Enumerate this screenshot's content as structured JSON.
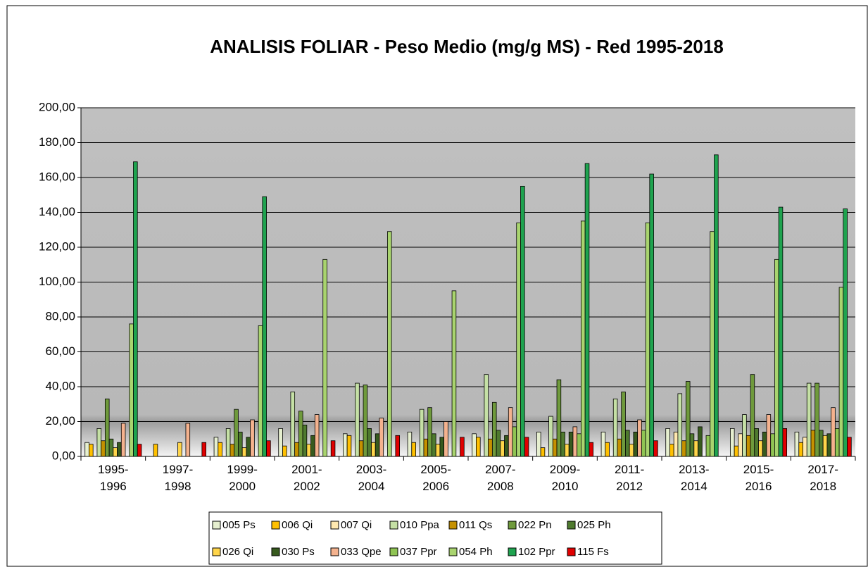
{
  "chart_data": {
    "type": "bar",
    "title": "ANALISIS FOLIAR - Peso Medio (mg/g MS) - Red 1995-2018",
    "categories": [
      "1995-1996",
      "1997-1998",
      "1999-2000",
      "2001-2002",
      "2003-2004",
      "2005-2006",
      "2007-2008",
      "2009-2010",
      "2011-2012",
      "2013-2014",
      "2015-2016",
      "2017-2018"
    ],
    "series": [
      {
        "name": "005 Ps",
        "color": "#e6efcf",
        "values": [
          8,
          null,
          11,
          16,
          13,
          14,
          13,
          14,
          14,
          16,
          16,
          14
        ]
      },
      {
        "name": "006 Qi",
        "color": "#ffc000",
        "values": [
          7,
          7,
          8,
          6,
          12,
          8,
          11,
          5,
          8,
          7,
          6,
          8
        ]
      },
      {
        "name": "007 Qi",
        "color": "#ffe9b0",
        "values": [
          null,
          null,
          null,
          null,
          null,
          null,
          null,
          null,
          null,
          14,
          13,
          11
        ]
      },
      {
        "name": "010 Ppa",
        "color": "#c5e0a5",
        "values": [
          16,
          null,
          16,
          37,
          42,
          27,
          47,
          23,
          33,
          36,
          24,
          42
        ]
      },
      {
        "name": "011 Qs",
        "color": "#c59100",
        "values": [
          9,
          null,
          7,
          8,
          9,
          10,
          10,
          10,
          10,
          9,
          12,
          15
        ]
      },
      {
        "name": "022 Pn",
        "color": "#6f9a3c",
        "values": [
          33,
          null,
          27,
          26,
          41,
          28,
          31,
          44,
          37,
          43,
          47,
          42
        ]
      },
      {
        "name": "025 Ph",
        "color": "#4f7a2f",
        "values": [
          10,
          null,
          14,
          18,
          16,
          13,
          15,
          14,
          15,
          13,
          16,
          15
        ]
      },
      {
        "name": "026 Qi",
        "color": "#ffd54a",
        "values": [
          5,
          8,
          5,
          7,
          8,
          7,
          9,
          7,
          7,
          9,
          9,
          12
        ]
      },
      {
        "name": "030 Ps",
        "color": "#375a1e",
        "values": [
          8,
          null,
          11,
          12,
          13,
          11,
          12,
          14,
          14,
          17,
          14,
          13
        ]
      },
      {
        "name": "033 Qpe",
        "color": "#f4b28e",
        "values": [
          19,
          19,
          21,
          24,
          22,
          20,
          28,
          17,
          21,
          null,
          24,
          28
        ]
      },
      {
        "name": "037 Ppr",
        "color": "#8fc453",
        "values": [
          null,
          null,
          null,
          null,
          null,
          null,
          17,
          13,
          15,
          12,
          13,
          16
        ]
      },
      {
        "name": "054 Ph",
        "color": "#a9d46f",
        "values": [
          76,
          null,
          75,
          113,
          129,
          95,
          134,
          135,
          134,
          129,
          113,
          97
        ]
      },
      {
        "name": "102 Ppr",
        "color": "#1fa34f",
        "values": [
          169,
          null,
          149,
          null,
          null,
          null,
          155,
          168,
          162,
          173,
          143,
          142
        ]
      },
      {
        "name": "115 Fs",
        "color": "#e00000",
        "values": [
          7,
          8,
          9,
          9,
          12,
          11,
          11,
          8,
          9,
          null,
          16,
          11
        ]
      }
    ],
    "ylim": [
      0,
      200
    ],
    "yticks": [
      {
        "value": 0,
        "label": "0,00"
      },
      {
        "value": 20,
        "label": "20,00"
      },
      {
        "value": 40,
        "label": "40,00"
      },
      {
        "value": 60,
        "label": "60,00"
      },
      {
        "value": 80,
        "label": "80,00"
      },
      {
        "value": 100,
        "label": "100,00"
      },
      {
        "value": 120,
        "label": "120,00"
      },
      {
        "value": 140,
        "label": "140,00"
      },
      {
        "value": 160,
        "label": "160,00"
      },
      {
        "value": 180,
        "label": "180,00"
      },
      {
        "value": 200,
        "label": "200,00"
      }
    ],
    "grid": true,
    "legend": "bottom"
  }
}
